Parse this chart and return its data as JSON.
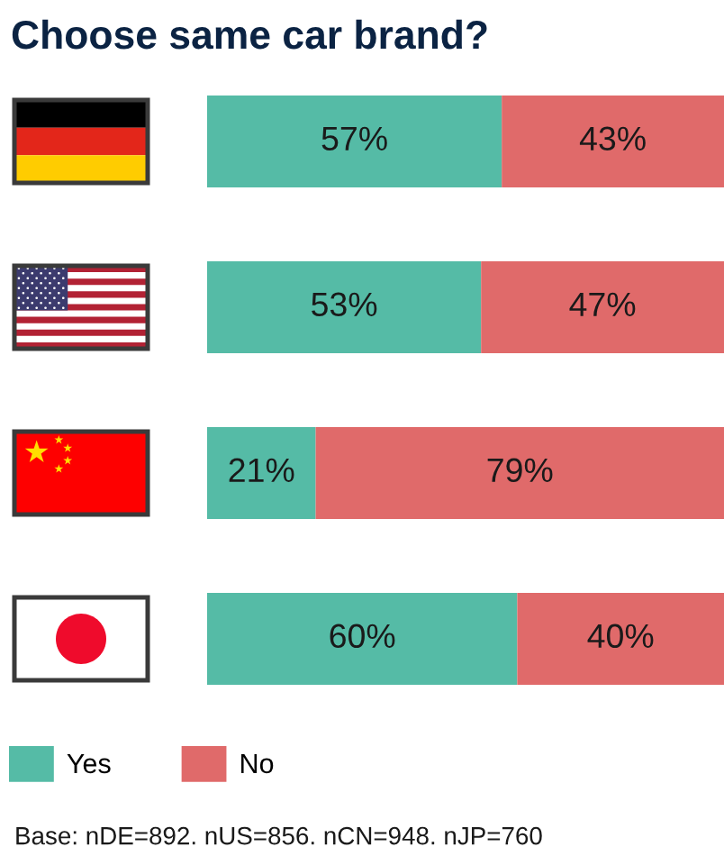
{
  "chart_data": {
    "type": "bar",
    "orientation": "horizontal",
    "stacked": true,
    "title": "Choose same car brand?",
    "categories": [
      null,
      null,
      null,
      null
    ],
    "series": [
      {
        "name": "Yes",
        "color": "#55bba6",
        "values": [
          57,
          53,
          21,
          60
        ],
        "value_labels": [
          "57%",
          "53%",
          "21%",
          "60%"
        ]
      },
      {
        "name": "No",
        "color": "#e06a6a",
        "values": [
          43,
          47,
          79,
          40
        ],
        "value_labels": [
          "43%",
          "47%",
          "79%",
          "40%"
        ]
      }
    ],
    "xlim": [
      0,
      100
    ],
    "legend": "bottom",
    "annotations": [
      "Base: nDE=892. nUS=856. nCN=948. nJP=760"
    ]
  }
}
